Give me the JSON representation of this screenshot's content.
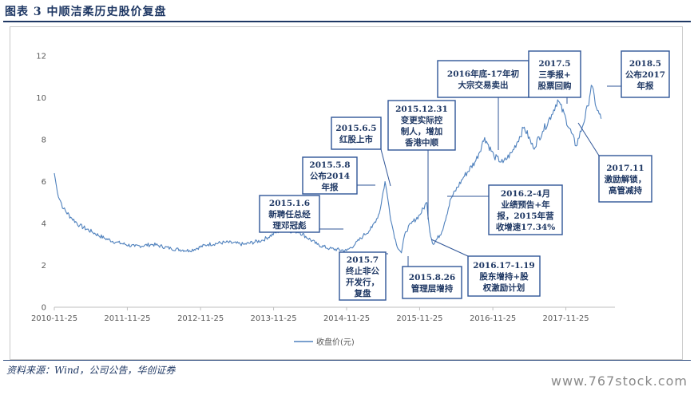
{
  "figure": {
    "title": "图表 3   中顺洁柔历史股价复盘",
    "source": "资料来源：Wind，公司公告，华创证券",
    "watermark": "www.767stock.com"
  },
  "colors": {
    "line": "#4f81bd",
    "accent": "#1f3864",
    "box_border": "#2f5597"
  },
  "chart_data": {
    "type": "line",
    "title": "",
    "xlabel": "",
    "ylabel": "",
    "ylim": [
      0,
      12
    ],
    "y_ticks": [
      "0",
      "2",
      "4",
      "6",
      "8",
      "10",
      "12"
    ],
    "x_ticks": [
      "2010-11-25",
      "2011-11-25",
      "2012-11-25",
      "2013-11-25",
      "2014-11-25",
      "2015-11-25",
      "2016-11-25",
      "2017-11-25"
    ],
    "grid": false,
    "legend_position": "bottom",
    "series": [
      {
        "name": "收盘价(元)",
        "x": [
          "2010-11-25",
          "2010-12-10",
          "2011-01-10",
          "2011-02-15",
          "2011-04-01",
          "2011-06-01",
          "2011-08-01",
          "2011-10-01",
          "2012-01-01",
          "2012-04-01",
          "2012-07-01",
          "2012-10-01",
          "2013-01-01",
          "2013-04-01",
          "2013-07-01",
          "2013-10-01",
          "2014-01-01",
          "2014-04-01",
          "2014-07-01",
          "2014-09-01",
          "2014-11-25",
          "2015-01-06",
          "2015-02-15",
          "2015-04-01",
          "2015-05-08",
          "2015-06-05",
          "2015-06-25",
          "2015-07-08",
          "2015-08-01",
          "2015-08-26",
          "2015-09-15",
          "2015-10-15",
          "2015-11-25",
          "2015-12-31",
          "2016-01-15",
          "2016-02-01",
          "2016-03-15",
          "2016-04-30",
          "2016-07-01",
          "2016-09-01",
          "2016-10-15",
          "2016-12-01",
          "2017-01-15",
          "2017-03-01",
          "2017-05-01",
          "2017-06-15",
          "2017-08-01",
          "2017-09-15",
          "2017-10-15",
          "2017-11-25",
          "2018-01-15",
          "2018-02-15",
          "2018-03-15",
          "2018-04-01",
          "2018-05-01",
          "2018-05-20"
        ],
        "y": [
          6.4,
          5.5,
          4.7,
          4.3,
          3.9,
          3.6,
          3.3,
          3.1,
          2.9,
          3.0,
          2.8,
          2.7,
          3.0,
          3.1,
          3.0,
          3.2,
          3.7,
          3.6,
          3.0,
          2.8,
          2.7,
          3.0,
          3.4,
          3.8,
          4.5,
          6.0,
          4.8,
          4.0,
          3.0,
          2.6,
          3.6,
          4.0,
          4.4,
          5.0,
          3.6,
          3.0,
          3.6,
          5.2,
          6.2,
          7.0,
          8.1,
          7.2,
          6.9,
          7.4,
          8.6,
          7.6,
          8.4,
          9.2,
          9.9,
          9.0,
          7.7,
          8.6,
          9.6,
          10.6,
          9.4,
          9.0
        ]
      }
    ],
    "annotations": [
      {
        "lines": [
          "2015.1.6",
          "新聘任总经",
          "理邓冠彪"
        ],
        "date": "2015-01-06"
      },
      {
        "lines": [
          "2015.5.8",
          "公布2014",
          "年报"
        ],
        "date": "2015-05-08"
      },
      {
        "lines": [
          "2015.6.5",
          "红股上市"
        ],
        "date": "2015-06-05"
      },
      {
        "lines": [
          "2015.7",
          "终止非公",
          "开发行，",
          "复盘"
        ],
        "date": "2015-07-08"
      },
      {
        "lines": [
          "2015.8.26",
          "管理层增持"
        ],
        "date": "2015-08-26"
      },
      {
        "lines": [
          "2015.12.31",
          "变更实际控",
          "制人，增加",
          "香港中顺"
        ],
        "date": "2015-12-31"
      },
      {
        "lines": [
          "2016年底-17年初",
          "大宗交易卖出"
        ],
        "date": "2017-01-15"
      },
      {
        "lines": [
          "2016.2-4月",
          "业绩预告+年",
          "报，2015年营",
          "收增速17.34%"
        ],
        "date": "2016-03-15"
      },
      {
        "lines": [
          "2016.17-1.19",
          "股东增持+股",
          "权激励计划"
        ],
        "date": "2016-01-15"
      },
      {
        "lines": [
          "2017.5",
          "三季报+",
          "股票回购"
        ],
        "date": "2017-10-15"
      },
      {
        "lines": [
          "2017.11",
          "激励解锁，",
          "高管减持"
        ],
        "date": "2017-11-25"
      },
      {
        "lines": [
          "2018.5",
          "公布2017",
          "年报"
        ],
        "date": "2018-04-01"
      }
    ]
  }
}
